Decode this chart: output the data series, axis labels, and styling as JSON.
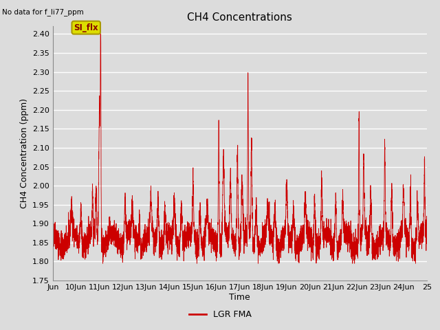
{
  "title": "CH4 Concentrations",
  "xlabel": "Time",
  "ylabel": "CH4 Concentration (ppm)",
  "top_left_text": "No data for f_li77_ppm",
  "ylim": [
    1.75,
    2.42
  ],
  "yticks": [
    1.75,
    1.8,
    1.85,
    1.9,
    1.95,
    2.0,
    2.05,
    2.1,
    2.15,
    2.2,
    2.25,
    2.3,
    2.35,
    2.4
  ],
  "xtick_labels": [
    "Jun",
    "10Jun",
    "11Jun",
    "12Jun",
    "13Jun",
    "14Jun",
    "15Jun",
    "16Jun",
    "17Jun",
    "18Jun",
    "19Jun",
    "20Jun",
    "21Jun",
    "22Jun",
    "23Jun",
    "24Jun",
    "25"
  ],
  "line_color": "#CC0000",
  "line_label": "LGR FMA",
  "legend_box_facecolor": "#DDDD00",
  "legend_box_edgecolor": "#AA9900",
  "legend_box_text": "SI_flx",
  "legend_box_text_color": "#880000",
  "background_color": "#DCDCDC",
  "axes_facecolor": "#DCDCDC",
  "grid_color": "#FFFFFF",
  "figsize": [
    6.4,
    4.8
  ],
  "dpi": 100
}
